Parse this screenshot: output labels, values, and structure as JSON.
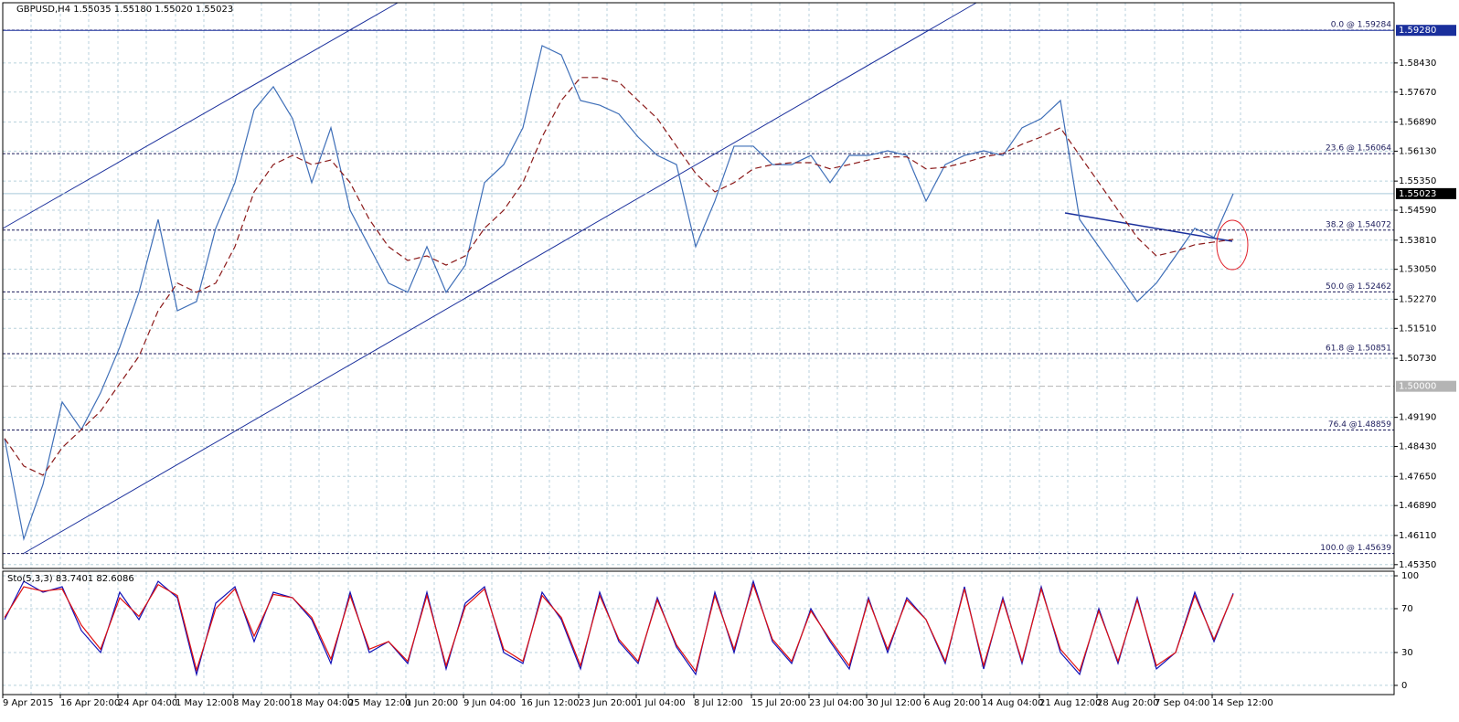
{
  "chart_data": {
    "type": "line",
    "title": "GBPUSD,H4  1.55035 1.55180 1.55020 1.55023",
    "categories": [
      null,
      "9 Apr 2015",
      null,
      null,
      "16 Apr 20:00",
      null,
      null,
      "24 Apr 04:00",
      null,
      null,
      "1 May 12:00",
      null,
      null,
      "8 May 20:00",
      null,
      null,
      "18 May 04:00",
      null,
      null,
      "25 May 12:00",
      null,
      null,
      "1 Jun 20:00",
      null,
      null,
      "9 Jun 04:00",
      null,
      null,
      "16 Jun 12:00",
      null,
      null,
      "23 Jun 20:00",
      null,
      null,
      "1 Jul 04:00",
      null,
      null,
      "8 Jul 12:00",
      null,
      null,
      "15 Jul 20:00",
      null,
      null,
      "23 Jul 04:00",
      null,
      null,
      "30 Jul 12:00",
      null,
      null,
      "6 Aug 20:00",
      null,
      null,
      "14 Aug 04:00",
      null,
      null,
      "21 Aug 12:00",
      null,
      null,
      "28 Aug 20:00",
      null,
      null,
      "7 Sep 04:00",
      null,
      null,
      "14 Sep 12:00"
    ],
    "series": [
      {
        "color": "#3f6fb8",
        "style": "solid",
        "values": [
          1.4864,
          1.4602,
          1.4744,
          1.4959,
          1.4887,
          1.4983,
          1.5102,
          1.5245,
          1.5435,
          1.5197,
          1.5221,
          1.5412,
          1.5531,
          1.5721,
          1.5781,
          1.5698,
          1.5531,
          1.5674,
          1.5459,
          1.5364,
          1.5269,
          1.5245,
          1.5364,
          1.5245,
          1.5316,
          1.5531,
          1.5578,
          1.5674,
          1.5888,
          1.5864,
          1.5745,
          1.5733,
          1.571,
          1.565,
          1.5602,
          1.5578,
          1.5364,
          1.5483,
          1.5626,
          1.5626,
          1.5578,
          1.5578,
          1.5602,
          1.5531,
          1.5602,
          1.5602,
          1.5614,
          1.5602,
          1.5483,
          1.5578,
          1.5602,
          1.5614,
          1.5602,
          1.5674,
          1.5698,
          1.5745,
          1.5435,
          1.5364,
          1.5293,
          1.5221,
          1.5269,
          1.534,
          1.5412,
          1.5388,
          1.5502
        ]
      },
      {
        "color": "#8b1a1a",
        "style": "dashed",
        "values": [
          1.4864,
          1.4792,
          1.4768,
          1.484,
          1.4887,
          1.4935,
          1.5007,
          1.5078,
          1.5197,
          1.5269,
          1.5245,
          1.5269,
          1.5364,
          1.5507,
          1.5578,
          1.5602,
          1.5578,
          1.559,
          1.5531,
          1.5435,
          1.5364,
          1.5328,
          1.534,
          1.5316,
          1.534,
          1.5412,
          1.5459,
          1.5531,
          1.565,
          1.5745,
          1.5805,
          1.5805,
          1.5793,
          1.5745,
          1.5698,
          1.5626,
          1.5555,
          1.5507,
          1.5531,
          1.5567,
          1.5578,
          1.5583,
          1.5583,
          1.5567,
          1.5578,
          1.559,
          1.5598,
          1.5598,
          1.5567,
          1.5571,
          1.5583,
          1.5598,
          1.5607,
          1.5631,
          1.565,
          1.5674,
          1.5602,
          1.5531,
          1.5459,
          1.5388,
          1.534,
          1.5352,
          1.5369,
          1.5376,
          1.5383
        ]
      }
    ],
    "ylim": [
      1.4525,
      1.6
    ],
    "yticks": [
      {
        "value": 1.5843,
        "label": "1.58430"
      },
      {
        "value": 1.5767,
        "label": "1.57670"
      },
      {
        "value": 1.5689,
        "label": "1.56890"
      },
      {
        "value": 1.5613,
        "label": "1.56130"
      },
      {
        "value": 1.5535,
        "label": "1.55350"
      },
      {
        "value": 1.5459,
        "label": "1.54590"
      },
      {
        "value": 1.5381,
        "label": "1.53810"
      },
      {
        "value": 1.5305,
        "label": "1.53050"
      },
      {
        "value": 1.5227,
        "label": "1.52270"
      },
      {
        "value": 1.5151,
        "label": "1.51510"
      },
      {
        "value": 1.5073,
        "label": "1.50730"
      },
      {
        "value": 1.4919,
        "label": "1.49190"
      },
      {
        "value": 1.4843,
        "label": "1.48430"
      },
      {
        "value": 1.4765,
        "label": "1.47650"
      },
      {
        "value": 1.4689,
        "label": "1.46890"
      },
      {
        "value": 1.4611,
        "label": "1.46110"
      },
      {
        "value": 1.4535,
        "label": "1.45350"
      }
    ],
    "grid": true,
    "levels": [
      {
        "value": 1.59284,
        "label": "0.0 @ 1.59284"
      },
      {
        "value": 1.56064,
        "label": "23.6 @ 1.56064"
      },
      {
        "value": 1.54072,
        "label": "38.2 @ 1.54072"
      },
      {
        "value": 1.52462,
        "label": "50.0 @ 1.52462"
      },
      {
        "value": 1.50851,
        "label": "61.8 @ 1.50851"
      },
      {
        "value": 1.48859,
        "label": "76.4 @1.48859"
      },
      {
        "value": 1.45639,
        "label": "100.0 @ 1.45639"
      }
    ],
    "price_labels": [
      {
        "value": 1.5928,
        "label": "1.59280",
        "color": "#1a2f9c",
        "line_color": "#1a2f9c"
      },
      {
        "value": 1.55023,
        "label": "1.55023",
        "color": "#000000",
        "line_color": "#a9c9d9"
      },
      {
        "value": 1.5,
        "label": "1.50000",
        "color": "#b4b4b4",
        "line_color": "#b4b4b4"
      }
    ],
    "indicator": {
      "type": "line",
      "label": "Sto(5,3,3) 83.7401 82.6086",
      "series": [
        {
          "color": "#1010b8",
          "values": [
            60,
            95,
            85,
            90,
            50,
            30,
            85,
            60,
            95,
            80,
            10,
            75,
            90,
            40,
            85,
            80,
            60,
            20,
            85,
            30,
            40,
            20,
            85,
            15,
            75,
            90,
            30,
            20,
            85,
            60,
            15,
            85,
            40,
            20,
            80,
            35,
            10,
            85,
            30,
            95,
            40,
            20,
            70,
            40,
            15,
            80,
            30,
            80,
            60,
            20,
            90,
            15,
            80,
            20,
            90,
            30,
            10,
            70,
            20,
            80,
            15,
            30,
            85,
            40,
            84
          ]
        },
        {
          "color": "#e01010",
          "values": [
            62,
            90,
            86,
            88,
            55,
            33,
            80,
            63,
            92,
            82,
            14,
            70,
            88,
            45,
            83,
            80,
            62,
            24,
            82,
            33,
            40,
            22,
            82,
            18,
            72,
            88,
            33,
            22,
            82,
            62,
            18,
            82,
            42,
            22,
            78,
            37,
            13,
            82,
            33,
            92,
            42,
            22,
            68,
            42,
            18,
            78,
            33,
            78,
            60,
            22,
            88,
            18,
            78,
            22,
            88,
            33,
            13,
            68,
            22,
            78,
            18,
            30,
            82,
            42,
            83
          ]
        }
      ],
      "ylim": [
        -8.4,
        104.2
      ],
      "yticks": [
        100,
        70,
        30,
        0
      ]
    }
  }
}
